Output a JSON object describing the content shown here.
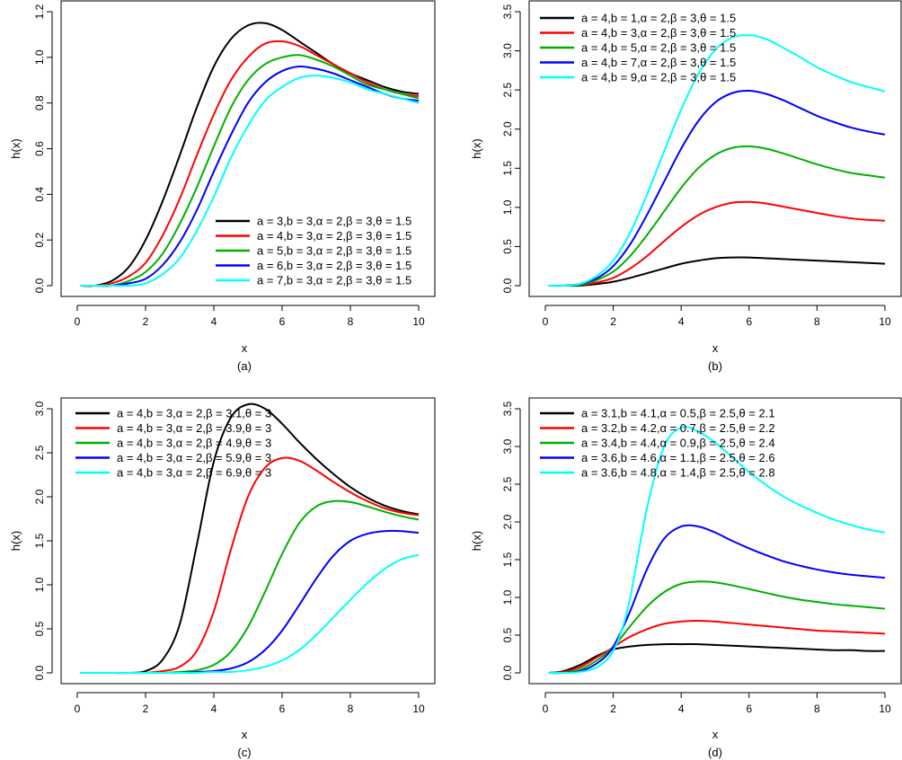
{
  "chart_data": [
    {
      "id": "a",
      "type": "line",
      "panel_label": "(a)",
      "xlabel": "x",
      "ylabel": "h(x)",
      "xlim": [
        0,
        10
      ],
      "ylim": [
        0,
        1.2
      ],
      "x_ticks": [
        "0",
        "2",
        "4",
        "6",
        "8",
        "10"
      ],
      "y_ticks": [
        "0.0",
        "0.2",
        "0.4",
        "0.6",
        "0.8",
        "1.0",
        "1.2"
      ],
      "legend_position": "bottom-right",
      "x": [
        0.1,
        0.5,
        1,
        1.5,
        2,
        2.5,
        3,
        3.5,
        4,
        4.5,
        5,
        5.5,
        6,
        6.5,
        7,
        7.5,
        8,
        8.5,
        9,
        9.5,
        10
      ],
      "series": [
        {
          "name": "a = 3,b = 3,α = 2,β = 3,θ = 1.5",
          "color": "#000000",
          "values": [
            0,
            0.0,
            0.02,
            0.08,
            0.2,
            0.37,
            0.57,
            0.78,
            0.96,
            1.08,
            1.14,
            1.15,
            1.12,
            1.07,
            1.02,
            0.97,
            0.93,
            0.9,
            0.87,
            0.85,
            0.84
          ]
        },
        {
          "name": "a = 4,b = 3,α = 2,β = 3,θ = 1.5",
          "color": "#ff0000",
          "values": [
            0,
            0.0,
            0.01,
            0.04,
            0.1,
            0.22,
            0.38,
            0.57,
            0.75,
            0.9,
            1.0,
            1.06,
            1.07,
            1.05,
            1.01,
            0.97,
            0.93,
            0.89,
            0.86,
            0.84,
            0.83
          ]
        },
        {
          "name": "a = 5,b = 3,α = 2,β = 3,θ = 1.5",
          "color": "#00b000",
          "values": [
            0,
            0.0,
            0.0,
            0.02,
            0.06,
            0.14,
            0.27,
            0.43,
            0.61,
            0.78,
            0.9,
            0.97,
            1.0,
            1.01,
            0.99,
            0.96,
            0.92,
            0.88,
            0.86,
            0.84,
            0.82
          ]
        },
        {
          "name": "a = 6,b = 3,α = 2,β = 3,θ = 1.5",
          "color": "#0000ff",
          "values": [
            0,
            0.0,
            0.0,
            0.01,
            0.03,
            0.09,
            0.19,
            0.33,
            0.5,
            0.66,
            0.8,
            0.89,
            0.94,
            0.96,
            0.95,
            0.93,
            0.9,
            0.87,
            0.84,
            0.82,
            0.81
          ]
        },
        {
          "name": "a = 7,b = 3,α = 2,β = 3,θ = 1.5",
          "color": "#00ffff",
          "values": [
            0,
            0.0,
            0.0,
            0.0,
            0.01,
            0.05,
            0.12,
            0.24,
            0.39,
            0.56,
            0.7,
            0.81,
            0.87,
            0.91,
            0.92,
            0.91,
            0.89,
            0.86,
            0.84,
            0.82,
            0.8
          ]
        }
      ]
    },
    {
      "id": "b",
      "type": "line",
      "panel_label": "(b)",
      "xlabel": "x",
      "ylabel": "h(x)",
      "xlim": [
        0,
        10
      ],
      "ylim": [
        0,
        3.5
      ],
      "x_ticks": [
        "0",
        "2",
        "4",
        "6",
        "8",
        "10"
      ],
      "y_ticks": [
        "0.0",
        "0.5",
        "1.0",
        "1.5",
        "2.0",
        "2.5",
        "3.0",
        "3.5"
      ],
      "legend_position": "top-left",
      "x": [
        0.1,
        0.5,
        1,
        1.5,
        2,
        2.5,
        3,
        3.5,
        4,
        4.5,
        5,
        5.5,
        6,
        6.5,
        7,
        7.5,
        8,
        8.5,
        9,
        9.5,
        10
      ],
      "series": [
        {
          "name": "a = 4,b = 1,α = 2,β = 3,θ = 1.5",
          "color": "#000000",
          "values": [
            0,
            0,
            0.0,
            0.02,
            0.05,
            0.1,
            0.16,
            0.22,
            0.28,
            0.32,
            0.35,
            0.36,
            0.36,
            0.35,
            0.34,
            0.33,
            0.32,
            0.31,
            0.3,
            0.29,
            0.28
          ]
        },
        {
          "name": "a = 4,b = 3,α = 2,β = 3,θ = 1.5",
          "color": "#ff0000",
          "values": [
            0,
            0,
            0.01,
            0.04,
            0.1,
            0.22,
            0.38,
            0.57,
            0.75,
            0.9,
            1.0,
            1.06,
            1.07,
            1.05,
            1.01,
            0.97,
            0.93,
            0.89,
            0.86,
            0.84,
            0.83
          ]
        },
        {
          "name": "a = 4,b = 5,α = 2,β = 3,θ = 1.5",
          "color": "#00b000",
          "values": [
            0,
            0,
            0.01,
            0.07,
            0.18,
            0.38,
            0.65,
            0.95,
            1.25,
            1.5,
            1.67,
            1.76,
            1.78,
            1.75,
            1.69,
            1.62,
            1.55,
            1.49,
            1.44,
            1.41,
            1.38
          ]
        },
        {
          "name": "a = 4,b = 7,α = 2,β = 3,θ = 1.5",
          "color": "#0000ff",
          "values": [
            0,
            0,
            0.02,
            0.09,
            0.25,
            0.53,
            0.91,
            1.33,
            1.75,
            2.1,
            2.34,
            2.46,
            2.49,
            2.45,
            2.37,
            2.27,
            2.17,
            2.09,
            2.02,
            1.97,
            1.93
          ]
        },
        {
          "name": "a = 4,b = 9,α = 2,β = 3,θ = 1.5",
          "color": "#00ffff",
          "values": [
            0,
            0,
            0.02,
            0.12,
            0.32,
            0.68,
            1.17,
            1.72,
            2.25,
            2.7,
            3.01,
            3.17,
            3.2,
            3.15,
            3.04,
            2.92,
            2.79,
            2.69,
            2.6,
            2.54,
            2.48
          ]
        }
      ]
    },
    {
      "id": "c",
      "type": "line",
      "panel_label": "(c)",
      "xlabel": "x",
      "ylabel": "h(x)",
      "xlim": [
        0,
        10
      ],
      "ylim": [
        0,
        3.0
      ],
      "x_ticks": [
        "0",
        "2",
        "4",
        "6",
        "8",
        "10"
      ],
      "y_ticks": [
        "0.0",
        "0.5",
        "1.0",
        "1.5",
        "2.0",
        "2.5",
        "3.0"
      ],
      "legend_position": "top-left",
      "x": [
        0.1,
        1,
        1.5,
        2,
        2.5,
        3,
        3.5,
        4,
        4.5,
        5,
        5.5,
        6,
        6.5,
        7,
        7.5,
        8,
        8.5,
        9,
        9.5,
        10
      ],
      "series": [
        {
          "name": "a = 4,b = 3,α = 2,β = 3.1,θ = 3",
          "color": "#000000",
          "values": [
            0,
            0,
            0,
            0.02,
            0.15,
            0.55,
            1.45,
            2.4,
            2.9,
            3.05,
            3.0,
            2.83,
            2.62,
            2.43,
            2.26,
            2.11,
            1.99,
            1.9,
            1.84,
            1.8
          ]
        },
        {
          "name": "a = 4,b = 3,α = 2,β = 3.9,θ = 3",
          "color": "#ff0000",
          "values": [
            0,
            0,
            0,
            0,
            0.02,
            0.07,
            0.25,
            0.7,
            1.4,
            2.0,
            2.33,
            2.44,
            2.41,
            2.3,
            2.17,
            2.05,
            1.95,
            1.87,
            1.82,
            1.79
          ]
        },
        {
          "name": "a = 4,b = 3,α = 2,β = 4.9,θ = 3",
          "color": "#00b000",
          "values": [
            0,
            0,
            0,
            0,
            0,
            0.01,
            0.03,
            0.09,
            0.24,
            0.52,
            0.92,
            1.35,
            1.7,
            1.89,
            1.95,
            1.94,
            1.89,
            1.83,
            1.78,
            1.74
          ]
        },
        {
          "name": "a = 4,b = 3,α = 2,β = 5.9,θ = 3",
          "color": "#0000ff",
          "values": [
            0,
            0,
            0,
            0,
            0,
            0,
            0.01,
            0.02,
            0.05,
            0.12,
            0.26,
            0.48,
            0.77,
            1.07,
            1.33,
            1.5,
            1.58,
            1.61,
            1.61,
            1.59
          ]
        },
        {
          "name": "a = 4,b = 3,α = 2,β = 6.9,θ = 3",
          "color": "#00ffff",
          "values": [
            0,
            0,
            0,
            0,
            0,
            0,
            0,
            0.01,
            0.01,
            0.03,
            0.07,
            0.14,
            0.26,
            0.43,
            0.63,
            0.83,
            1.02,
            1.18,
            1.29,
            1.34
          ]
        }
      ]
    },
    {
      "id": "d",
      "type": "line",
      "panel_label": "(d)",
      "xlabel": "x",
      "ylabel": "h(x)",
      "xlim": [
        0,
        10
      ],
      "ylim": [
        0,
        3.5
      ],
      "x_ticks": [
        "0",
        "2",
        "4",
        "6",
        "8",
        "10"
      ],
      "y_ticks": [
        "0.0",
        "0.5",
        "1.0",
        "1.5",
        "2.0",
        "2.5",
        "3.0",
        "3.5"
      ],
      "legend_position": "top-left",
      "x": [
        0.1,
        0.5,
        1,
        1.5,
        1.9,
        2.2,
        2.5,
        3,
        3.5,
        4,
        4.5,
        5,
        5.5,
        6,
        6.5,
        7,
        7.5,
        8,
        8.5,
        9,
        9.5,
        10
      ],
      "series": [
        {
          "name": "a = 3.1,b = 4.1,α = 0.5,β = 2.5,θ = 2.1",
          "color": "#000000",
          "values": [
            0,
            0.02,
            0.1,
            0.22,
            0.3,
            0.33,
            0.35,
            0.37,
            0.38,
            0.38,
            0.38,
            0.37,
            0.36,
            0.35,
            0.34,
            0.33,
            0.32,
            0.31,
            0.3,
            0.3,
            0.29,
            0.29
          ]
        },
        {
          "name": "a = 3.2,b = 4.2,α = 0.7,β = 2.5,θ = 2.2",
          "color": "#ff0000",
          "values": [
            0,
            0.01,
            0.07,
            0.2,
            0.31,
            0.4,
            0.48,
            0.58,
            0.65,
            0.68,
            0.69,
            0.68,
            0.66,
            0.64,
            0.62,
            0.6,
            0.58,
            0.56,
            0.55,
            0.54,
            0.53,
            0.52
          ]
        },
        {
          "name": "a = 3.4,b = 4.4,α = 0.9,β = 2.5,θ = 2.4",
          "color": "#00b000",
          "values": [
            0,
            0.0,
            0.04,
            0.16,
            0.3,
            0.45,
            0.62,
            0.88,
            1.07,
            1.18,
            1.21,
            1.2,
            1.16,
            1.11,
            1.06,
            1.01,
            0.97,
            0.94,
            0.91,
            0.89,
            0.87,
            0.85
          ]
        },
        {
          "name": "a = 3.6,b = 4.6,α = 1.1,β = 2.5,θ = 2.6",
          "color": "#0000ff",
          "values": [
            0,
            0.0,
            0.02,
            0.12,
            0.28,
            0.52,
            0.82,
            1.38,
            1.78,
            1.94,
            1.94,
            1.86,
            1.75,
            1.65,
            1.56,
            1.48,
            1.42,
            1.37,
            1.33,
            1.3,
            1.28,
            1.26
          ]
        },
        {
          "name": "a = 3.6,b = 4.8,α = 1.4,β = 2.5,θ = 2.8",
          "color": "#00ffff",
          "values": [
            0,
            0.0,
            0.01,
            0.07,
            0.22,
            0.5,
            1.0,
            2.2,
            3.0,
            3.25,
            3.2,
            3.05,
            2.86,
            2.66,
            2.49,
            2.34,
            2.22,
            2.12,
            2.03,
            1.96,
            1.9,
            1.86
          ]
        }
      ]
    }
  ]
}
